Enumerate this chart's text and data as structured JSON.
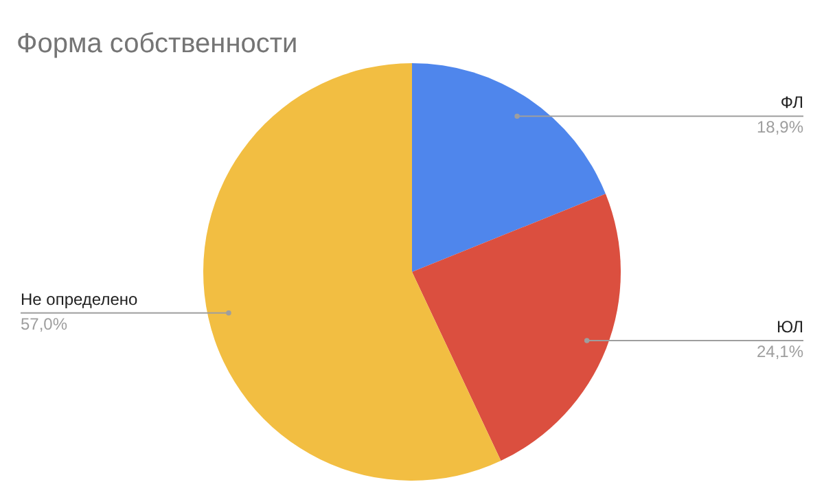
{
  "chart_data": {
    "type": "pie",
    "title": "Форма  собственности",
    "categories": [
      "ФЛ",
      "ЮЛ",
      "Не определено"
    ],
    "values": [
      18.9,
      24.1,
      57.0
    ],
    "value_labels": [
      "18,9%",
      "24,1%",
      "57,0%"
    ],
    "colors": [
      "#4f86ec",
      "#db4f3f",
      "#f2be42"
    ]
  }
}
